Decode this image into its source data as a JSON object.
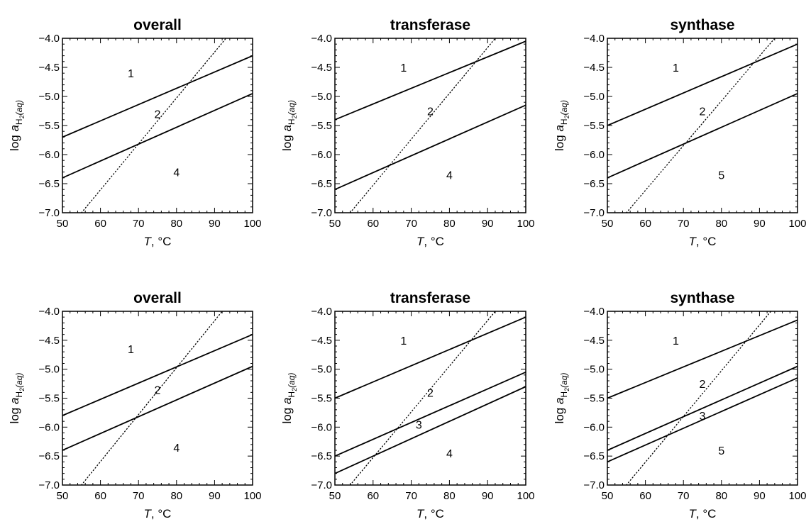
{
  "chart_data": [
    {
      "type": "line",
      "title": "overall",
      "xlabel": "T, °C",
      "ylabel": "log a_H2(aq)",
      "xlim": [
        50,
        100
      ],
      "ylim": [
        -7.0,
        -4.0
      ],
      "xticks": [
        50,
        60,
        70,
        80,
        90,
        100
      ],
      "yticks": [
        -7.0,
        -6.5,
        -6.0,
        -5.5,
        -5.0,
        -4.5,
        -4.0
      ],
      "series": [
        {
          "x": [
            50,
            100
          ],
          "y": [
            -5.7,
            -4.3
          ],
          "style": "solid"
        },
        {
          "x": [
            50,
            100
          ],
          "y": [
            -6.4,
            -4.95
          ],
          "style": "solid"
        },
        {
          "x": [
            55,
            93
          ],
          "y": [
            -7.0,
            -4.0
          ],
          "style": "dotted"
        }
      ],
      "field_labels": [
        {
          "text": "1",
          "x": 68,
          "y": -4.6
        },
        {
          "text": "2",
          "x": 75,
          "y": -5.3
        },
        {
          "text": "4",
          "x": 80,
          "y": -6.3
        }
      ]
    },
    {
      "type": "line",
      "title": "transferase",
      "xlabel": "T, °C",
      "ylabel": "log a_H2(aq)",
      "xlim": [
        50,
        100
      ],
      "ylim": [
        -7.0,
        -4.0
      ],
      "xticks": [
        50,
        60,
        70,
        80,
        90,
        100
      ],
      "yticks": [
        -7.0,
        -6.5,
        -6.0,
        -5.5,
        -5.0,
        -4.5,
        -4.0
      ],
      "series": [
        {
          "x": [
            50,
            100
          ],
          "y": [
            -5.4,
            -4.05
          ],
          "style": "solid"
        },
        {
          "x": [
            50,
            100
          ],
          "y": [
            -6.6,
            -5.15
          ],
          "style": "solid"
        },
        {
          "x": [
            54,
            92
          ],
          "y": [
            -7.0,
            -4.0
          ],
          "style": "dotted"
        }
      ],
      "field_labels": [
        {
          "text": "1",
          "x": 68,
          "y": -4.5
        },
        {
          "text": "2",
          "x": 75,
          "y": -5.25
        },
        {
          "text": "4",
          "x": 80,
          "y": -6.35
        }
      ]
    },
    {
      "type": "line",
      "title": "synthase",
      "xlabel": "T, °C",
      "ylabel": "log a_H2(aq)",
      "xlim": [
        50,
        100
      ],
      "ylim": [
        -7.0,
        -4.0
      ],
      "xticks": [
        50,
        60,
        70,
        80,
        90,
        100
      ],
      "yticks": [
        -7.0,
        -6.5,
        -6.0,
        -5.5,
        -5.0,
        -4.5,
        -4.0
      ],
      "series": [
        {
          "x": [
            50,
            100
          ],
          "y": [
            -5.5,
            -4.1
          ],
          "style": "solid"
        },
        {
          "x": [
            50,
            100
          ],
          "y": [
            -6.4,
            -4.95
          ],
          "style": "solid"
        },
        {
          "x": [
            55,
            94
          ],
          "y": [
            -7.0,
            -4.0
          ],
          "style": "dotted"
        }
      ],
      "field_labels": [
        {
          "text": "1",
          "x": 68,
          "y": -4.5
        },
        {
          "text": "2",
          "x": 75,
          "y": -5.25
        },
        {
          "text": "5",
          "x": 80,
          "y": -6.35
        }
      ]
    },
    {
      "type": "line",
      "title": "overall",
      "xlabel": "T, °C",
      "ylabel": "log a_H2(aq)",
      "xlim": [
        50,
        100
      ],
      "ylim": [
        -7.0,
        -4.0
      ],
      "xticks": [
        50,
        60,
        70,
        80,
        90,
        100
      ],
      "yticks": [
        -7.0,
        -6.5,
        -6.0,
        -5.5,
        -5.0,
        -4.5,
        -4.0
      ],
      "series": [
        {
          "x": [
            50,
            100
          ],
          "y": [
            -5.8,
            -4.4
          ],
          "style": "solid"
        },
        {
          "x": [
            50,
            100
          ],
          "y": [
            -6.4,
            -4.95
          ],
          "style": "solid"
        },
        {
          "x": [
            55,
            92
          ],
          "y": [
            -7.0,
            -4.0
          ],
          "style": "dotted"
        }
      ],
      "field_labels": [
        {
          "text": "1",
          "x": 68,
          "y": -4.65
        },
        {
          "text": "2",
          "x": 75,
          "y": -5.35
        },
        {
          "text": "4",
          "x": 80,
          "y": -6.35
        }
      ]
    },
    {
      "type": "line",
      "title": "transferase",
      "xlabel": "T, °C",
      "ylabel": "log a_H2(aq)",
      "xlim": [
        50,
        100
      ],
      "ylim": [
        -7.0,
        -4.0
      ],
      "xticks": [
        50,
        60,
        70,
        80,
        90,
        100
      ],
      "yticks": [
        -7.0,
        -6.5,
        -6.0,
        -5.5,
        -5.0,
        -4.5,
        -4.0
      ],
      "series": [
        {
          "x": [
            50,
            100
          ],
          "y": [
            -5.5,
            -4.1
          ],
          "style": "solid"
        },
        {
          "x": [
            50,
            100
          ],
          "y": [
            -6.5,
            -5.05
          ],
          "style": "solid"
        },
        {
          "x": [
            50,
            100
          ],
          "y": [
            -6.8,
            -5.3
          ],
          "style": "solid"
        },
        {
          "x": [
            54,
            92
          ],
          "y": [
            -7.0,
            -4.0
          ],
          "style": "dotted"
        }
      ],
      "field_labels": [
        {
          "text": "1",
          "x": 68,
          "y": -4.5
        },
        {
          "text": "2",
          "x": 75,
          "y": -5.4
        },
        {
          "text": "3",
          "x": 72,
          "y": -5.95
        },
        {
          "text": "4",
          "x": 80,
          "y": -6.45
        }
      ]
    },
    {
      "type": "line",
      "title": "synthase",
      "xlabel": "T, °C",
      "ylabel": "log a_H2(aq)",
      "xlim": [
        50,
        100
      ],
      "ylim": [
        -7.0,
        -4.0
      ],
      "xticks": [
        50,
        60,
        70,
        80,
        90,
        100
      ],
      "yticks": [
        -7.0,
        -6.5,
        -6.0,
        -5.5,
        -5.0,
        -4.5,
        -4.0
      ],
      "series": [
        {
          "x": [
            50,
            100
          ],
          "y": [
            -5.5,
            -4.15
          ],
          "style": "solid"
        },
        {
          "x": [
            50,
            100
          ],
          "y": [
            -6.4,
            -4.95
          ],
          "style": "solid"
        },
        {
          "x": [
            50,
            100
          ],
          "y": [
            -6.6,
            -5.15
          ],
          "style": "solid"
        },
        {
          "x": [
            55,
            93
          ],
          "y": [
            -7.0,
            -4.0
          ],
          "style": "dotted"
        }
      ],
      "field_labels": [
        {
          "text": "1",
          "x": 68,
          "y": -4.5
        },
        {
          "text": "2",
          "x": 75,
          "y": -5.25
        },
        {
          "text": "3",
          "x": 75,
          "y": -5.8
        },
        {
          "text": "5",
          "x": 80,
          "y": -6.4
        }
      ]
    }
  ]
}
